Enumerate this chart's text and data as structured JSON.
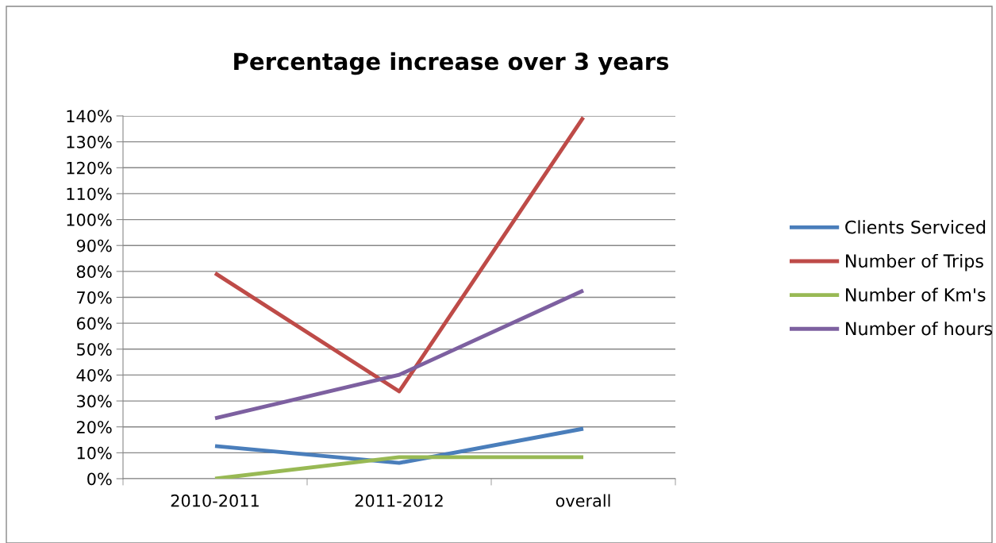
{
  "chart_data": {
    "type": "line",
    "title": "Percentage increase over 3 years",
    "categories": [
      "2010-2011",
      "2011-2012",
      "overall"
    ],
    "series": [
      {
        "name": "Clients Serviced",
        "color": "#4a7ebb",
        "values": [
          12.6,
          6.1,
          19.3
        ]
      },
      {
        "name": "Number of Trips",
        "color": "#be4b48",
        "values": [
          79.3,
          33.7,
          139.4
        ]
      },
      {
        "name": "Number of Km's",
        "color": "#98b954",
        "values": [
          0,
          8.3,
          8.3
        ]
      },
      {
        "name": "Number of hours",
        "color": "#7d60a0",
        "values": [
          23.3,
          40.1,
          72.6
        ]
      }
    ],
    "ylim": [
      0,
      140
    ],
    "yticks": [
      {
        "value": 0,
        "label": "0%"
      },
      {
        "value": 10,
        "label": "10%"
      },
      {
        "value": 20,
        "label": "20%"
      },
      {
        "value": 30,
        "label": "30%"
      },
      {
        "value": 40,
        "label": "40%"
      },
      {
        "value": 50,
        "label": "50%"
      },
      {
        "value": 60,
        "label": "60%"
      },
      {
        "value": 70,
        "label": "70%"
      },
      {
        "value": 80,
        "label": "80%"
      },
      {
        "value": 90,
        "label": "90%"
      },
      {
        "value": 100,
        "label": "100%"
      },
      {
        "value": 110,
        "label": "110%"
      },
      {
        "value": 120,
        "label": "120%"
      },
      {
        "value": 130,
        "label": "130%"
      },
      {
        "value": 140,
        "label": "140%"
      }
    ],
    "grid": "y",
    "legend": "right",
    "marker": "none",
    "line_style": "solid"
  }
}
